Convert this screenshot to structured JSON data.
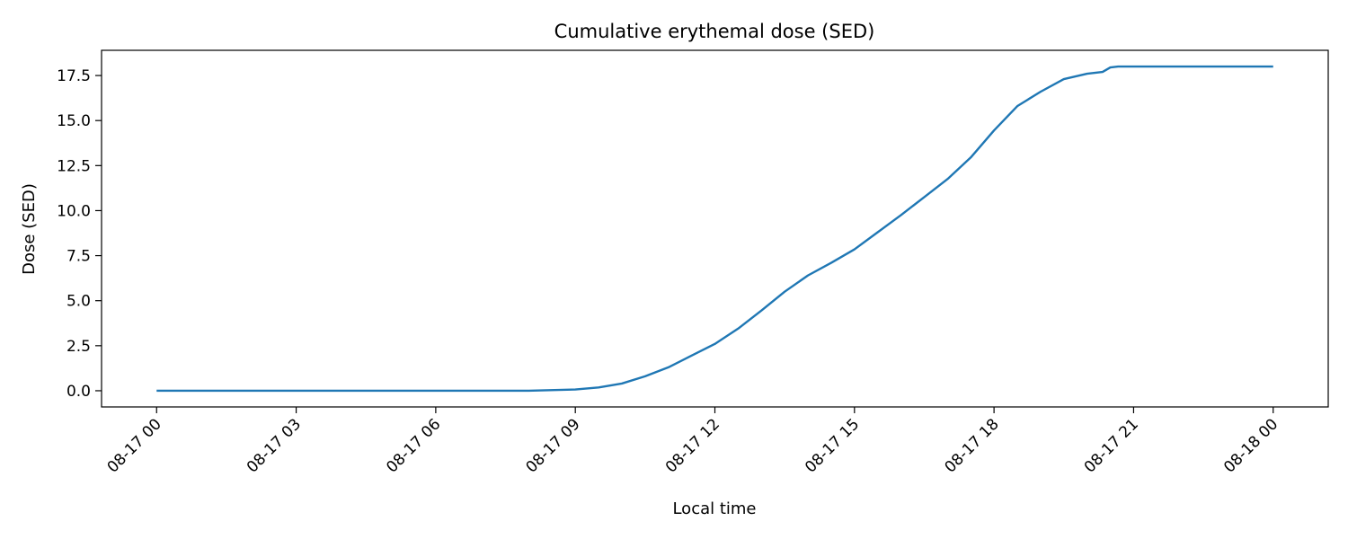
{
  "chart_data": {
    "type": "line",
    "title": "Cumulative erythemal dose (SED)",
    "xlabel": "Local time",
    "ylabel": "Dose (SED)",
    "x_ticks": [
      "08-17 00",
      "08-17 03",
      "08-17 06",
      "08-17 09",
      "08-17 12",
      "08-17 15",
      "08-17 18",
      "08-17 21",
      "08-18 00"
    ],
    "y_ticks": [
      "0.0",
      "2.5",
      "5.0",
      "7.5",
      "10.0",
      "12.5",
      "15.0",
      "17.5"
    ],
    "xlim": [
      "2024-08-16 22:49",
      "2024-08-18 01:11"
    ],
    "ylim": [
      -0.9,
      18.9
    ],
    "grid": false,
    "line_color": "#1f77b4",
    "series": [
      {
        "x": [
          "08-17 00:00",
          "08-17 08:00",
          "08-17 09:00",
          "08-17 09:30",
          "08-17 10:00",
          "08-17 10:30",
          "08-17 11:00",
          "08-17 11:30",
          "08-17 12:00",
          "08-17 12:30",
          "08-17 13:00",
          "08-17 13:30",
          "08-17 14:00",
          "08-17 14:30",
          "08-17 15:00",
          "08-17 15:30",
          "08-17 16:00",
          "08-17 16:30",
          "08-17 17:00",
          "08-17 17:30",
          "08-17 18:00",
          "08-17 18:30",
          "08-17 19:00",
          "08-17 19:30",
          "08-17 20:00",
          "08-17 20:20",
          "08-17 20:30",
          "08-17 20:40",
          "08-17 21:00",
          "08-18 00:00"
        ],
        "values": [
          0.0,
          0.0,
          0.07,
          0.18,
          0.4,
          0.8,
          1.3,
          1.95,
          2.6,
          3.45,
          4.45,
          5.5,
          6.4,
          7.1,
          7.85,
          8.8,
          9.75,
          10.75,
          11.75,
          12.95,
          14.45,
          15.8,
          16.6,
          17.3,
          17.6,
          17.7,
          17.95,
          18.0,
          18.0,
          18.0
        ]
      }
    ]
  }
}
